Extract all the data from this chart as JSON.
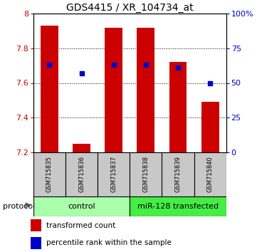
{
  "title": "GDS4415 / XR_104734_at",
  "samples": [
    "GSM715835",
    "GSM715836",
    "GSM715837",
    "GSM715838",
    "GSM715839",
    "GSM715840"
  ],
  "bar_tops": [
    7.93,
    7.25,
    7.92,
    7.92,
    7.72,
    7.49
  ],
  "bar_base": 7.2,
  "percentile_values": [
    63,
    57,
    63,
    63,
    61,
    50
  ],
  "ylim_left": [
    7.2,
    8.0
  ],
  "ylim_right": [
    0,
    100
  ],
  "yticks_left": [
    7.2,
    7.4,
    7.6,
    7.8,
    8.0
  ],
  "yticks_right": [
    0,
    25,
    50,
    75,
    100
  ],
  "ytick_labels_left": [
    "7.2",
    "7.4",
    "7.6",
    "7.8",
    "8"
  ],
  "ytick_labels_right": [
    "0",
    "25",
    "50",
    "75",
    "100%"
  ],
  "bar_color": "#cc0000",
  "dot_color": "#0000cc",
  "bar_width": 0.55,
  "control_label": "control",
  "transfected_label": "miR-128 transfected",
  "protocol_label": "protocol",
  "legend_bar_label": "transformed count",
  "legend_dot_label": "percentile rank within the sample",
  "control_bg": "#aaffaa",
  "transfected_bg": "#44ee44",
  "sample_bg": "#c8c8c8",
  "title_fontsize": 10,
  "tick_fontsize": 8,
  "sample_fontsize": 6,
  "legend_fontsize": 7.5,
  "protocol_fontsize": 8
}
